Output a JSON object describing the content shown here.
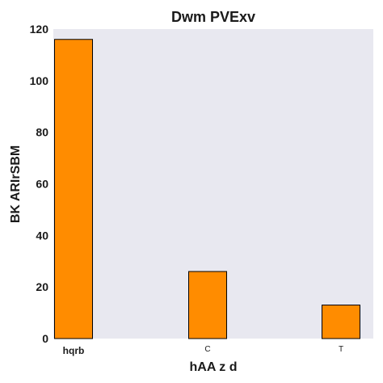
{
  "chart_data": {
    "type": "bar",
    "title": "Dwm  PVExv",
    "xlabel": "hAA  z d",
    "ylabel": "BK ARIrSBM",
    "categories": [
      "hqrb",
      "C",
      "T"
    ],
    "values": [
      116,
      26,
      13
    ],
    "ylim": [
      0,
      120
    ],
    "yticks": [
      0,
      20,
      40,
      60,
      80,
      100,
      120
    ],
    "grid": false,
    "legend": "none",
    "colors": {
      "bar_fill": "#ff8c00",
      "bar_edge": "#000000",
      "plot_background": "#e8e8f0"
    }
  }
}
